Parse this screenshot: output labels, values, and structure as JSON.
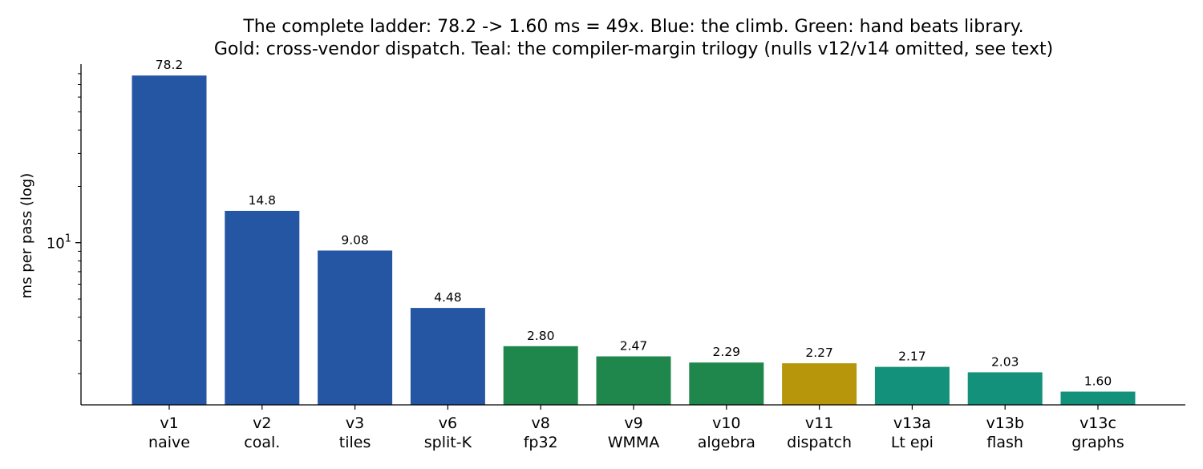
{
  "chart_data": {
    "type": "bar",
    "title": [
      "The complete ladder: 78.2 -> 1.60 ms = 49x.  Blue: the climb.  Green: hand beats library.",
      "Gold: cross-vendor dispatch.  Teal: the compiler-margin trilogy (nulls v12/v14 omitted, see text)"
    ],
    "xlabel": "",
    "ylabel": "ms per pass (log)",
    "yscale": "log",
    "ylim": [
      1.36,
      90
    ],
    "yticks": [
      {
        "value": 10,
        "base": "10",
        "exp": "1"
      }
    ],
    "grid": false,
    "categories": [
      [
        "v1",
        "naive"
      ],
      [
        "v2",
        "coal."
      ],
      [
        "v3",
        "tiles"
      ],
      [
        "v6",
        "split-K"
      ],
      [
        "v8",
        "fp32"
      ],
      [
        "v9",
        "WMMA"
      ],
      [
        "v10",
        "algebra"
      ],
      [
        "v11",
        "dispatch"
      ],
      [
        "v13a",
        "Lt epi"
      ],
      [
        "v13b",
        "flash"
      ],
      [
        "v13c",
        "graphs"
      ]
    ],
    "values": [
      78.2,
      14.8,
      9.08,
      4.48,
      2.8,
      2.47,
      2.29,
      2.27,
      2.17,
      2.03,
      1.6
    ],
    "value_labels": [
      "78.2",
      "14.8",
      "9.08",
      "4.48",
      "2.80",
      "2.47",
      "2.29",
      "2.27",
      "2.17",
      "2.03",
      "1.60"
    ],
    "bar_colors": [
      "#2556a3",
      "#2556a3",
      "#2556a3",
      "#2556a3",
      "#20874c",
      "#20874c",
      "#20874c",
      "#b8960c",
      "#13917a",
      "#13917a",
      "#13917a"
    ]
  }
}
